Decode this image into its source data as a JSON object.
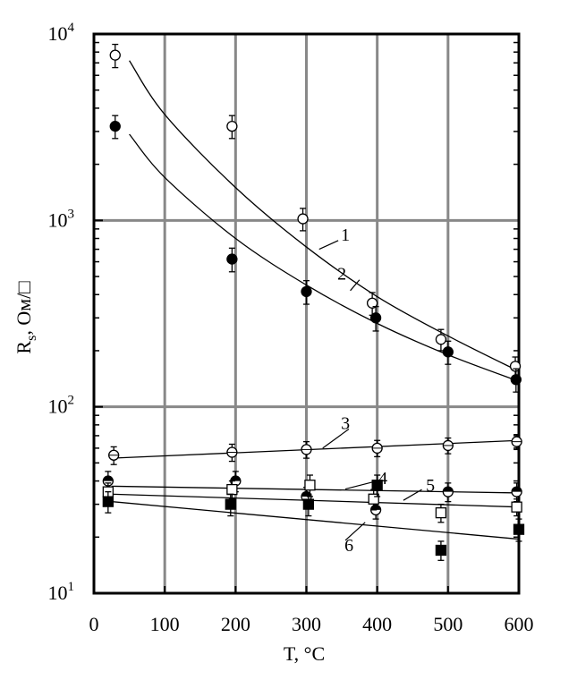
{
  "chart_data": {
    "type": "scatter",
    "xlabel": "T, °C",
    "ylabel": "Rs, Ом/□",
    "ylabel_main": "R",
    "ylabel_sub": "s",
    "ylabel_rest": ", Ом/□",
    "xlim": [
      0,
      600
    ],
    "ylim": [
      10,
      10000
    ],
    "y_scale": "log",
    "grid": true,
    "x_ticks": [
      0,
      100,
      200,
      300,
      400,
      500,
      600
    ],
    "x_tick_labels": [
      "0",
      "100",
      "200",
      "300",
      "400",
      "500",
      "600"
    ],
    "y_ticks": [
      10,
      100,
      1000,
      10000
    ],
    "y_tick_labels": [
      {
        "base": "10",
        "exp": "1"
      },
      {
        "base": "10",
        "exp": "2"
      },
      {
        "base": "10",
        "exp": "3"
      },
      {
        "base": "10",
        "exp": "4"
      }
    ],
    "series": [
      {
        "name": "1",
        "marker": "open-circle",
        "points": [
          [
            30,
            7700
          ],
          [
            195,
            3200
          ],
          [
            295,
            1020
          ],
          [
            393,
            360
          ],
          [
            490,
            230
          ],
          [
            595,
            165
          ]
        ],
        "errors": [
          1100,
          450,
          140,
          50,
          30,
          20
        ],
        "fit": [
          [
            50,
            7200
          ],
          [
            100,
            3700
          ],
          [
            200,
            1500
          ],
          [
            300,
            720
          ],
          [
            400,
            390
          ],
          [
            500,
            240
          ],
          [
            600,
            155
          ]
        ]
      },
      {
        "name": "2",
        "marker": "filled-circle",
        "points": [
          [
            30,
            3200
          ],
          [
            195,
            620
          ],
          [
            300,
            415
          ],
          [
            398,
            300
          ],
          [
            500,
            197
          ],
          [
            596,
            140
          ]
        ],
        "errors": [
          450,
          90,
          60,
          45,
          28,
          20
        ],
        "fit": [
          [
            50,
            2900
          ],
          [
            100,
            1700
          ],
          [
            200,
            800
          ],
          [
            300,
            450
          ],
          [
            400,
            280
          ],
          [
            500,
            190
          ],
          [
            600,
            137
          ]
        ]
      },
      {
        "name": "3",
        "marker": "open-circle-bar",
        "points": [
          [
            28,
            55
          ],
          [
            195,
            57
          ],
          [
            300,
            59
          ],
          [
            400,
            60
          ],
          [
            500,
            62
          ],
          [
            597,
            65
          ]
        ],
        "errors": [
          6,
          6,
          6,
          6,
          6,
          6
        ],
        "fit": [
          [
            25,
            53
          ],
          [
            600,
            66
          ]
        ]
      },
      {
        "name": "4",
        "marker": "half-filled-circle",
        "points": [
          [
            20,
            40
          ],
          [
            200,
            40
          ],
          [
            300,
            33
          ],
          [
            398,
            28
          ],
          [
            500,
            35
          ],
          [
            597,
            35
          ]
        ],
        "errors": [
          5,
          5,
          4,
          3,
          4,
          4
        ],
        "fit": [
          [
            25,
            37.5
          ],
          [
            600,
            34.5
          ]
        ]
      },
      {
        "name": "5",
        "marker": "open-square",
        "points": [
          [
            20,
            35
          ],
          [
            195,
            36
          ],
          [
            305,
            38
          ],
          [
            395,
            32
          ],
          [
            490,
            27
          ],
          [
            597,
            29
          ]
        ],
        "errors": [
          4,
          4,
          5,
          4,
          3,
          3
        ],
        "fit": [
          [
            25,
            34
          ],
          [
            600,
            29
          ]
        ]
      },
      {
        "name": "6",
        "marker": "filled-square",
        "points": [
          [
            20,
            31
          ],
          [
            193,
            30
          ],
          [
            303,
            30
          ],
          [
            400,
            38
          ],
          [
            490,
            17
          ],
          [
            600,
            22
          ]
        ],
        "errors": [
          4,
          4,
          4,
          5,
          2,
          3
        ],
        "fit": [
          [
            25,
            31
          ],
          [
            600,
            19.5
          ]
        ]
      }
    ],
    "curve_labels": [
      {
        "text": "1",
        "x": 345,
        "y": 840,
        "lx1": 318,
        "ly1": 700,
        "lx2": 345,
        "ly2": 780
      },
      {
        "text": "2",
        "x": 340,
        "y": 520,
        "lx1": 362,
        "ly1": 420,
        "lx2": 375,
        "ly2": 480
      },
      {
        "text": "3",
        "x": 345,
        "y": 82,
        "lx1": 323,
        "ly1": 60,
        "lx2": 360,
        "ly2": 76
      },
      {
        "text": "4",
        "x": 398,
        "y": 41.5,
        "lx1": 355,
        "ly1": 36.2,
        "lx2": 394,
        "ly2": 39.5
      },
      {
        "text": "5",
        "x": 465,
        "y": 38,
        "lx1": 437,
        "ly1": 31.5,
        "lx2": 463,
        "ly2": 36
      },
      {
        "text": "6",
        "x": 350,
        "y": 18.2,
        "lx1": 383,
        "ly1": 24,
        "lx2": 355,
        "ly2": 19.2
      }
    ]
  }
}
